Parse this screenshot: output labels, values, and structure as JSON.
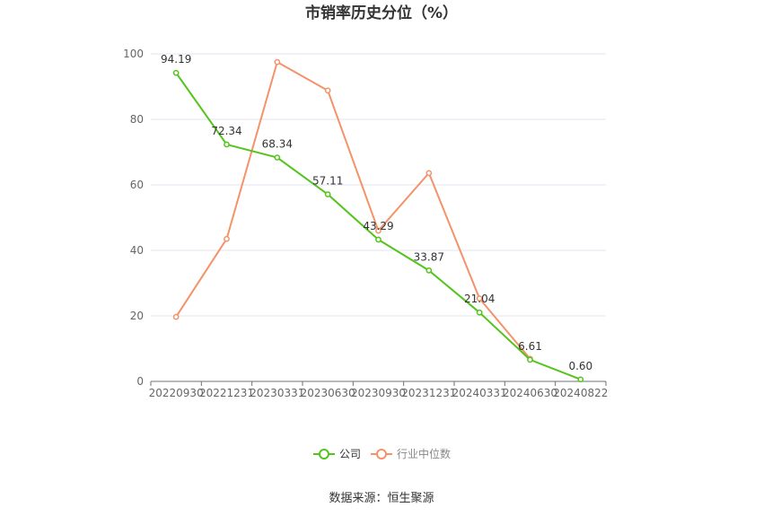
{
  "chart_data": {
    "type": "line",
    "title": "市销率历史分位（%）",
    "categories": [
      "20220930",
      "20221231",
      "20230331",
      "20230630",
      "20230930",
      "20231231",
      "20240331",
      "20240630",
      "20240822"
    ],
    "ylim": [
      0,
      100
    ],
    "yticks": [
      "0",
      "20",
      "40",
      "60",
      "80",
      "100"
    ],
    "grid": true,
    "legend_position": "bottom",
    "series": [
      {
        "name": "公司",
        "color": "#52c41a",
        "values": [
          94.19,
          72.34,
          68.34,
          57.11,
          43.29,
          33.87,
          21.04,
          6.61,
          0.6
        ],
        "labels": [
          "94.19",
          "72.34",
          "68.34",
          "57.11",
          "43.29",
          "33.87",
          "21.04",
          "6.61",
          "0.60"
        ]
      },
      {
        "name": "行业中位数",
        "color": "#f4926a",
        "values": [
          19.7,
          43.5,
          97.5,
          88.8,
          46.0,
          63.6,
          25.3,
          6.9,
          null
        ]
      }
    ]
  },
  "footer": {
    "source": "数据来源：恒生聚源"
  }
}
